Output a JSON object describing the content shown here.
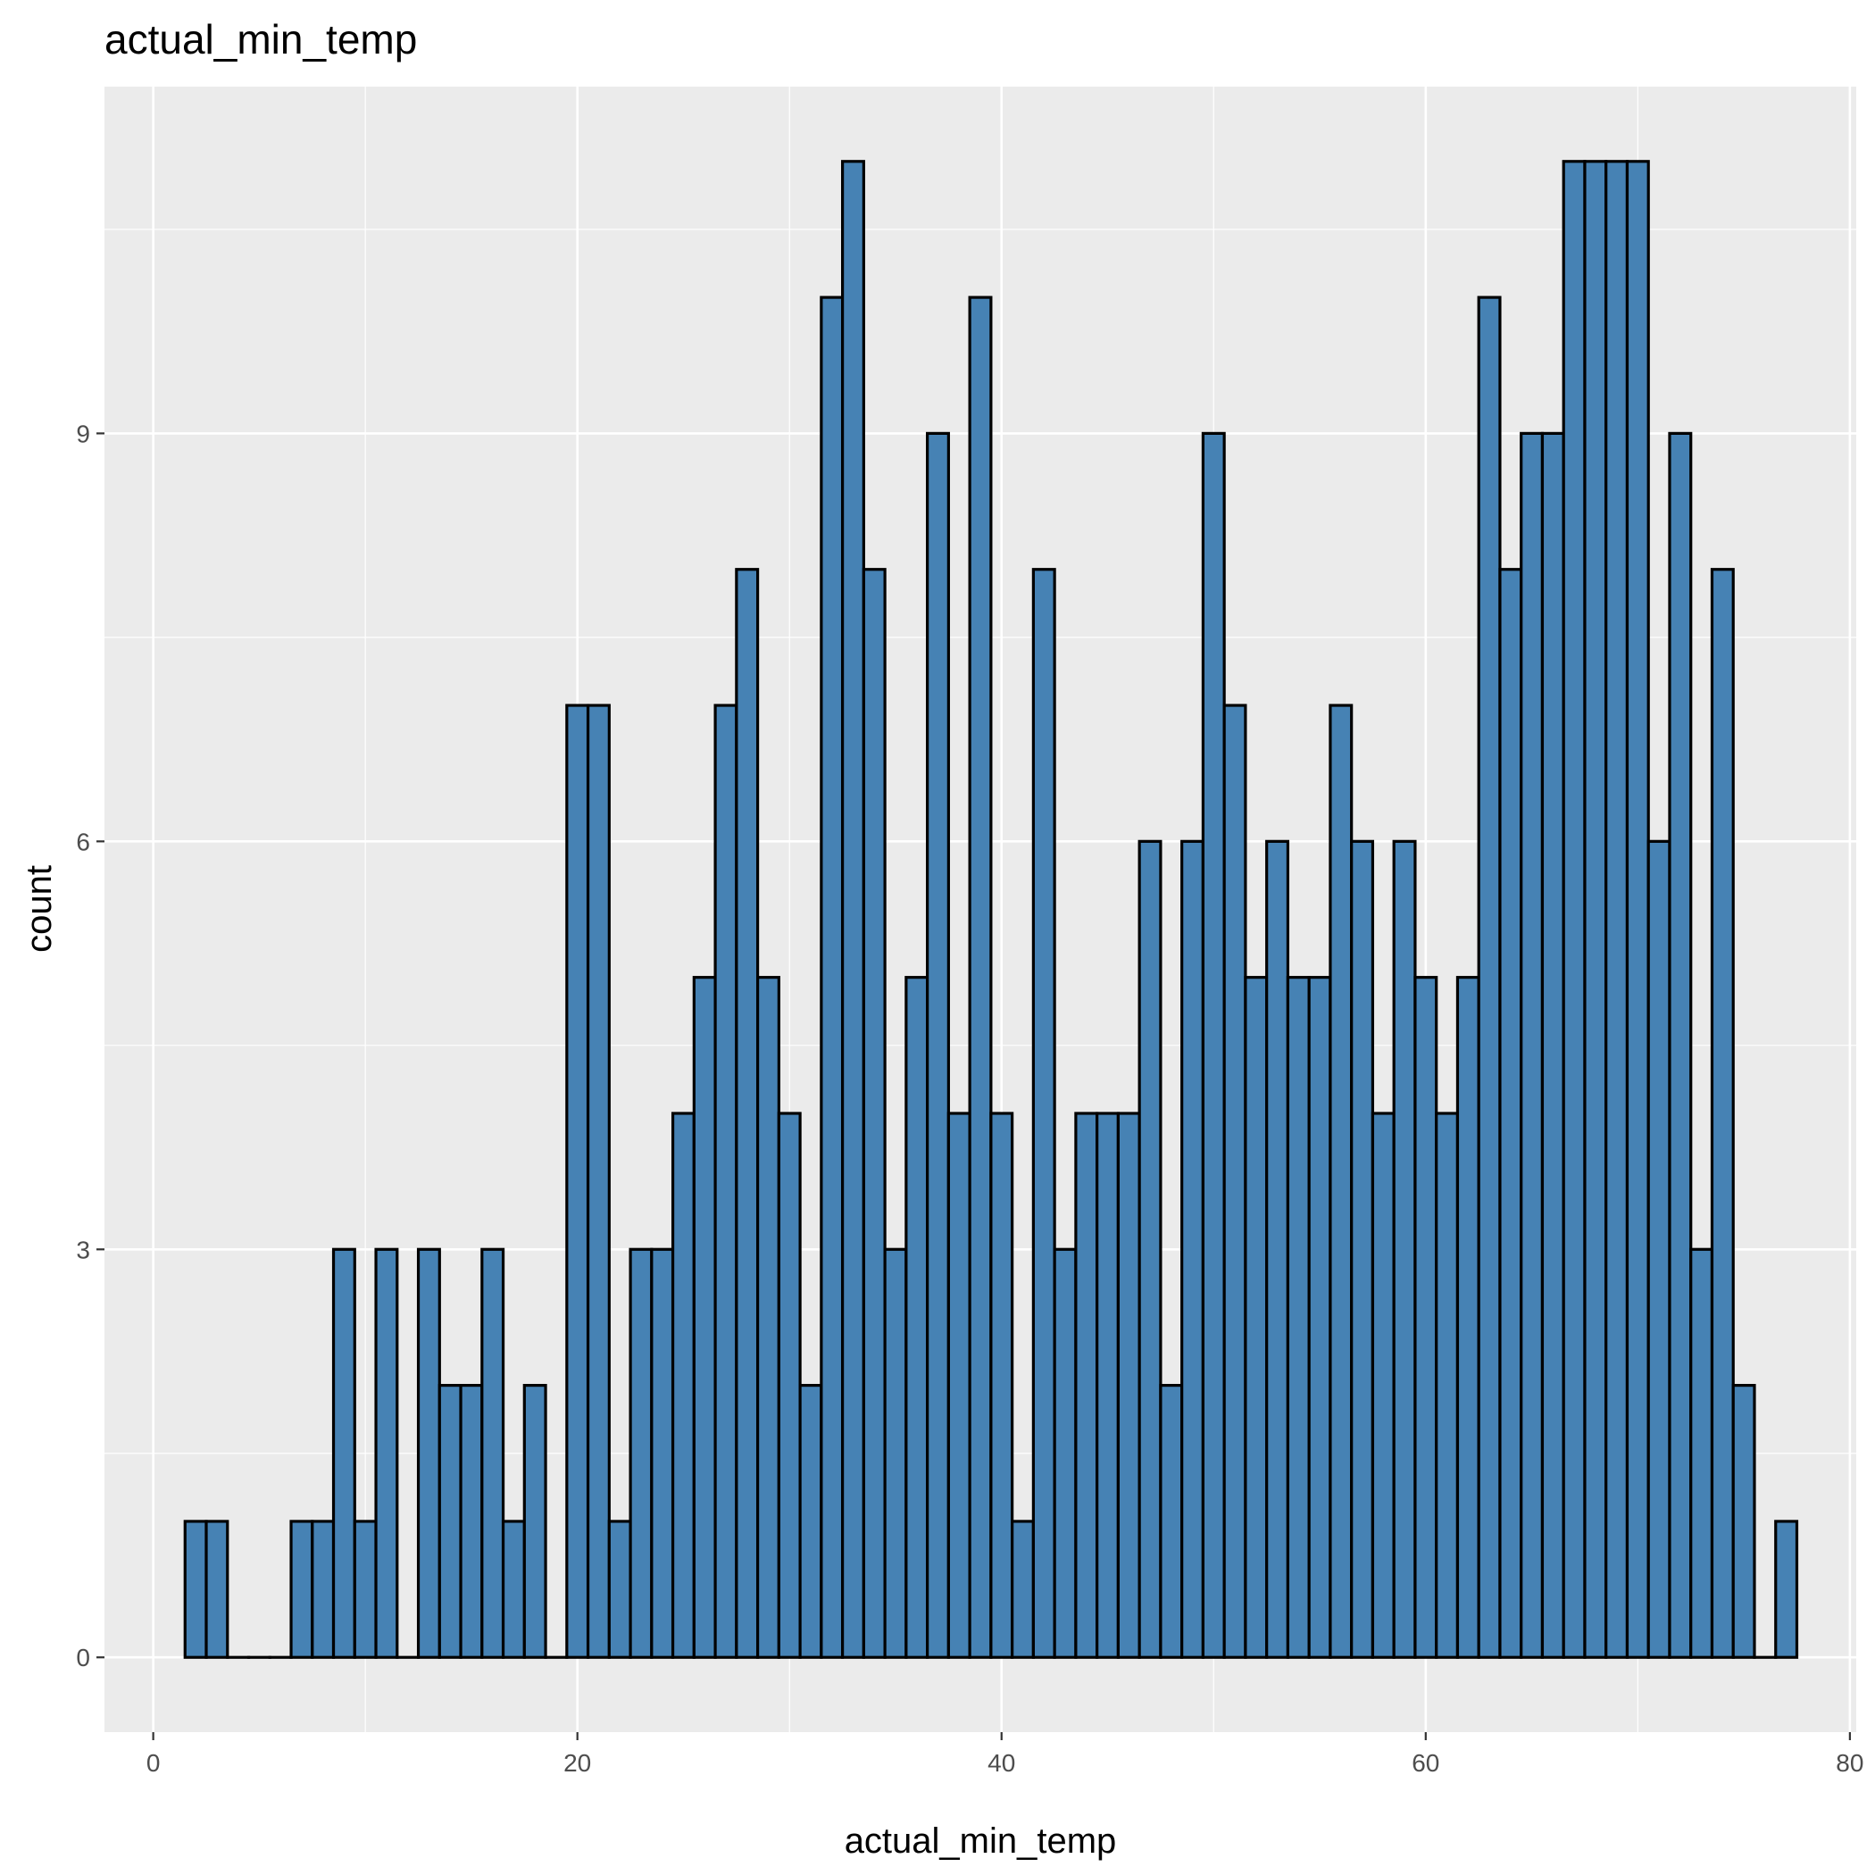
{
  "chart_data": {
    "type": "bar",
    "subtype": "histogram",
    "title": "actual_min_temp",
    "xlabel": "actual_min_temp",
    "ylabel": "count",
    "xlim": [
      -2.3,
      80.3
    ],
    "ylim": [
      -0.55,
      11.55
    ],
    "x_ticks": [
      0,
      20,
      40,
      60,
      80
    ],
    "y_ticks": [
      0,
      3,
      6,
      9
    ],
    "grid": true,
    "background": "#EBEBEB",
    "grid_color": "#FFFFFF",
    "bar_fill": "#4682B4",
    "bar_outline": "#000000",
    "bin_width": 1,
    "bins_start": 1.5,
    "counts": [
      1,
      1,
      0,
      0,
      0,
      1,
      1,
      3,
      1,
      3,
      0,
      3,
      2,
      2,
      3,
      1,
      2,
      0,
      7,
      7,
      1,
      3,
      3,
      4,
      5,
      7,
      8,
      5,
      4,
      2,
      10,
      11,
      8,
      3,
      5,
      9,
      4,
      10,
      4,
      1,
      8,
      3,
      4,
      4,
      4,
      6,
      2,
      6,
      9,
      7,
      5,
      6,
      5,
      5,
      7,
      6,
      4,
      6,
      5,
      4,
      5,
      10,
      8,
      9,
      9,
      11,
      11,
      11,
      11,
      6,
      9,
      3,
      8,
      2,
      0,
      1
    ]
  }
}
